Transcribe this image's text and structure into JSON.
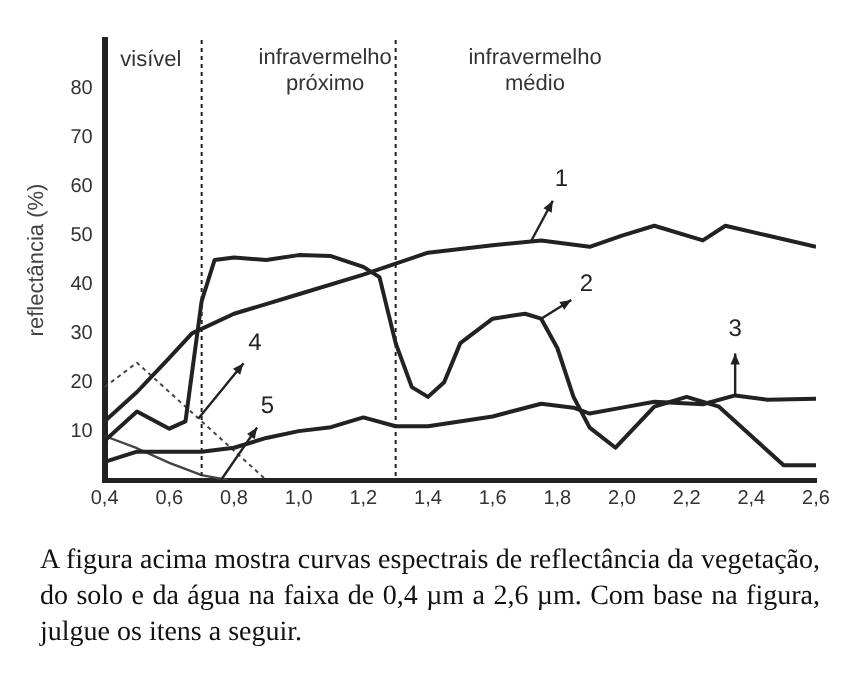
{
  "chart_data": {
    "type": "line",
    "ylabel": "reflectância (%)",
    "xlim": [
      0.4,
      2.6
    ],
    "xticks": [
      {
        "value": 0.4,
        "label": "0,4"
      },
      {
        "value": 0.6,
        "label": "0,6"
      },
      {
        "value": 0.8,
        "label": "0,8"
      },
      {
        "value": 1.0,
        "label": "1,0"
      },
      {
        "value": 1.2,
        "label": "1,2"
      },
      {
        "value": 1.4,
        "label": "1,4"
      },
      {
        "value": 1.6,
        "label": "1,6"
      },
      {
        "value": 1.8,
        "label": "1,8"
      },
      {
        "value": 2.0,
        "label": "2,0"
      },
      {
        "value": 2.2,
        "label": "2,2"
      },
      {
        "value": 2.4,
        "label": "2,4"
      },
      {
        "value": 2.6,
        "label": "2,6"
      }
    ],
    "ylim": [
      0,
      90
    ],
    "yticks": [
      10,
      20,
      30,
      40,
      50,
      60,
      70,
      80
    ],
    "grid": false,
    "legend": false,
    "series": [
      {
        "color": "#222222",
        "x": [
          0.4,
          0.5,
          0.6,
          0.67,
          0.8,
          1.0,
          1.2,
          1.4,
          1.6,
          1.75,
          1.9,
          2.0,
          2.1,
          2.25,
          2.32,
          2.45,
          2.6
        ],
        "values": [
          12,
          18,
          25,
          30,
          34,
          38,
          42,
          46.5,
          48,
          49,
          47.7,
          50,
          52,
          49,
          52,
          50,
          47.7
        ]
      },
      {
        "color": "#222222",
        "x": [
          0.4,
          0.5,
          0.6,
          0.65,
          0.7,
          0.74,
          0.8,
          0.9,
          1.0,
          1.1,
          1.2,
          1.25,
          1.3,
          1.35,
          1.4,
          1.45,
          1.5,
          1.6,
          1.7,
          1.75,
          1.8,
          1.85,
          1.9,
          1.98,
          2.1,
          2.2,
          2.3,
          2.4,
          2.5,
          2.6
        ],
        "values": [
          8,
          14,
          10.5,
          12,
          36.6,
          45,
          45.5,
          45,
          46,
          45.8,
          43.6,
          41.5,
          28,
          19,
          17,
          20,
          28,
          33,
          34,
          33,
          27,
          17,
          10.7,
          6.6,
          15,
          17,
          15,
          9,
          3,
          3
        ]
      },
      {
        "color": "#222222",
        "x": [
          0.4,
          0.5,
          0.7,
          0.8,
          0.9,
          1.0,
          1.1,
          1.2,
          1.3,
          1.4,
          1.6,
          1.75,
          1.85,
          1.9,
          2.0,
          2.1,
          2.25,
          2.35,
          2.45,
          2.6
        ],
        "values": [
          3.7,
          5.8,
          5.8,
          6.6,
          8.6,
          10,
          10.8,
          12.8,
          11,
          11,
          13,
          15.6,
          14.8,
          13.6,
          14.8,
          16,
          15.5,
          17.3,
          16.4,
          16.6
        ]
      },
      {
        "color": "#444444",
        "line_style": "dotted",
        "x": [
          0.4,
          0.5,
          0.9
        ],
        "values": [
          19,
          24,
          0
        ]
      },
      {
        "color": "#444444",
        "x": [
          0.4,
          0.5,
          0.6,
          0.7,
          0.78
        ],
        "values": [
          9,
          6.5,
          3.5,
          1,
          0
        ]
      }
    ],
    "ref_lines": [
      {
        "axis": "x",
        "value": 0.7,
        "line_style": "dotted"
      },
      {
        "axis": "x",
        "value": 1.3,
        "line_style": "dotted"
      }
    ],
    "annotations": [
      "visível",
      "infravermelho próximo",
      "infravermelho médio",
      {
        "text": "1",
        "x": 1.72,
        "y": 49
      },
      {
        "text": "2",
        "x": 1.75,
        "y": 33
      },
      {
        "text": "3",
        "x": 2.35,
        "y": 17.3
      },
      {
        "text": "4",
        "x": 0.69,
        "y": 12.6
      },
      {
        "text": "5",
        "x": 0.76,
        "y": 0
      },
      "A figura acima mostra curvas espectrais de reflectância da vegetação, do solo e da água na faixa de 0,4 µm a 2,6 µm. Com base na figura, julgue os itens a seguir."
    ]
  }
}
